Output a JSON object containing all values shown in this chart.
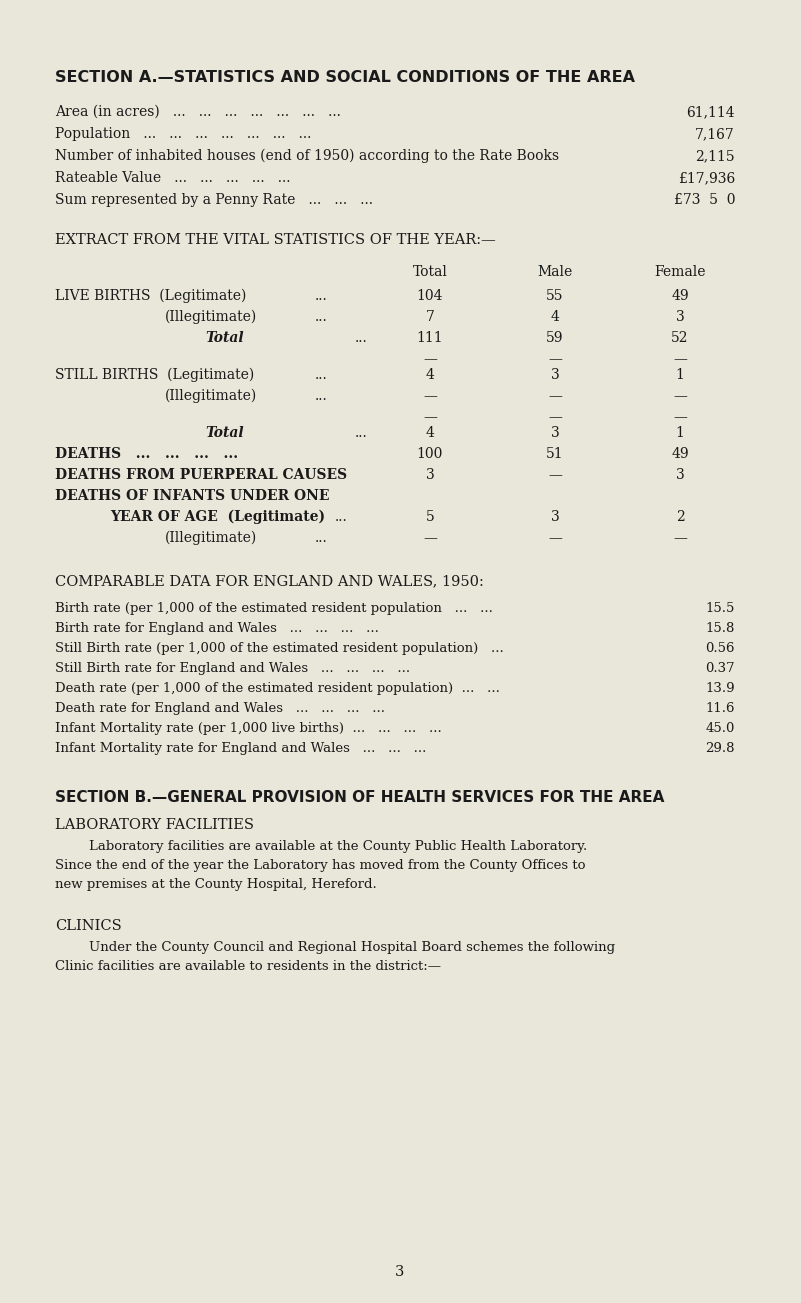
{
  "bg_color": "#e9e7d9",
  "text_color": "#1a1a1a",
  "page_number": "3",
  "section_a_title": "SECTION A.—STATISTICS AND SOCIAL CONDITIONS OF THE AREA",
  "section_a_rows": [
    {
      "label": "Area (in acres)   ...   ...   ...   ...   ...   ...   ...",
      "value": "61,114"
    },
    {
      "label": "Population   ...   ...   ...   ...   ...   ...   ...",
      "value": "7,167"
    },
    {
      "label": "Number of inhabited houses (end of 1950) according to the Rate Books",
      "value": "2,115"
    },
    {
      "label": "Rateable Value   ...   ...   ...   ...   ...",
      "value": "£17,936"
    },
    {
      "label": "Sum represented by a Penny Rate   ...   ...   ...",
      "value": "£73  5  0"
    }
  ],
  "extract_title": "EXTRACT FROM THE VITAL STATISTICS OF THE YEAR:—",
  "vital_stats": [
    {
      "type": "main",
      "label": "LIVE BIRTHS  (Legitimate)",
      "dots": "...",
      "total": "104",
      "male": "55",
      "female": "49"
    },
    {
      "type": "sub",
      "label": "(Illegitimate)",
      "dots": "...",
      "total": "7",
      "male": "4",
      "female": "3"
    },
    {
      "type": "total",
      "label": "Total",
      "dots": "...",
      "total": "111",
      "male": "59",
      "female": "52"
    },
    {
      "type": "div"
    },
    {
      "type": "main",
      "label": "STILL BIRTHS  (Legitimate)",
      "dots": "...",
      "total": "4",
      "male": "3",
      "female": "1"
    },
    {
      "type": "sub",
      "label": "(Illegitimate)",
      "dots": "...",
      "total": "—",
      "male": "—",
      "female": "—"
    },
    {
      "type": "div"
    },
    {
      "type": "total",
      "label": "Total",
      "dots": "...",
      "total": "4",
      "male": "3",
      "female": "1"
    },
    {
      "type": "main",
      "label": "DEATHS   ...   ...   ...   ...",
      "dots": "",
      "total": "100",
      "male": "51",
      "female": "49"
    },
    {
      "type": "main",
      "label": "DEATHS FROM PUERPERAL CAUSES",
      "dots": "",
      "total": "3",
      "male": "—",
      "female": "3"
    },
    {
      "type": "two",
      "label1": "DEATHS OF INFANTS UNDER ONE",
      "label2": "YEAR OF AGE  (Legitimate)",
      "dots": "...",
      "total": "5",
      "male": "3",
      "female": "2"
    },
    {
      "type": "sub",
      "label": "(Illegitimate)",
      "dots": "...",
      "total": "—",
      "male": "—",
      "female": "—"
    }
  ],
  "comparable_title": "COMPARABLE DATA FOR ENGLAND AND WALES, 1950:",
  "comparable_rows": [
    {
      "label": "Birth rate (per 1,000 of the estimated resident population   ...   ...",
      "value": "15.5"
    },
    {
      "label": "Birth rate for England and Wales   ...   ...   ...   ...",
      "value": "15.8"
    },
    {
      "label": "Still Birth rate (per 1,000 of the estimated resident population)   ...",
      "value": "0.56"
    },
    {
      "label": "Still Birth rate for England and Wales   ...   ...   ...   ...",
      "value": "0.37"
    },
    {
      "label": "Death rate (per 1,000 of the estimated resident population)  ...   ...",
      "value": "13.9"
    },
    {
      "label": "Death rate for England and Wales   ...   ...   ...   ...",
      "value": "11.6"
    },
    {
      "label": "Infant Mortality rate (per 1,000 live births)  ...   ...   ...   ...",
      "value": "45.0"
    },
    {
      "label": "Infant Mortality rate for England and Wales   ...   ...   ...",
      "value": "29.8"
    }
  ],
  "section_b_title": "SECTION B.—GENERAL PROVISION OF HEALTH SERVICES FOR THE AREA",
  "lab_title": "LABORATORY FACILITIES",
  "lab_lines": [
    "        Laboratory facilities are available at the County Public Health Laboratory.",
    "Since the end of the year the Laboratory has moved from the County Offices to",
    "new premises at the County Hospital, Hereford."
  ],
  "clinics_title": "CLINICS",
  "clinics_lines": [
    "        Under the County Council and Regional Hospital Board schemes the following",
    "Clinic facilities are available to residents in the district:—"
  ]
}
